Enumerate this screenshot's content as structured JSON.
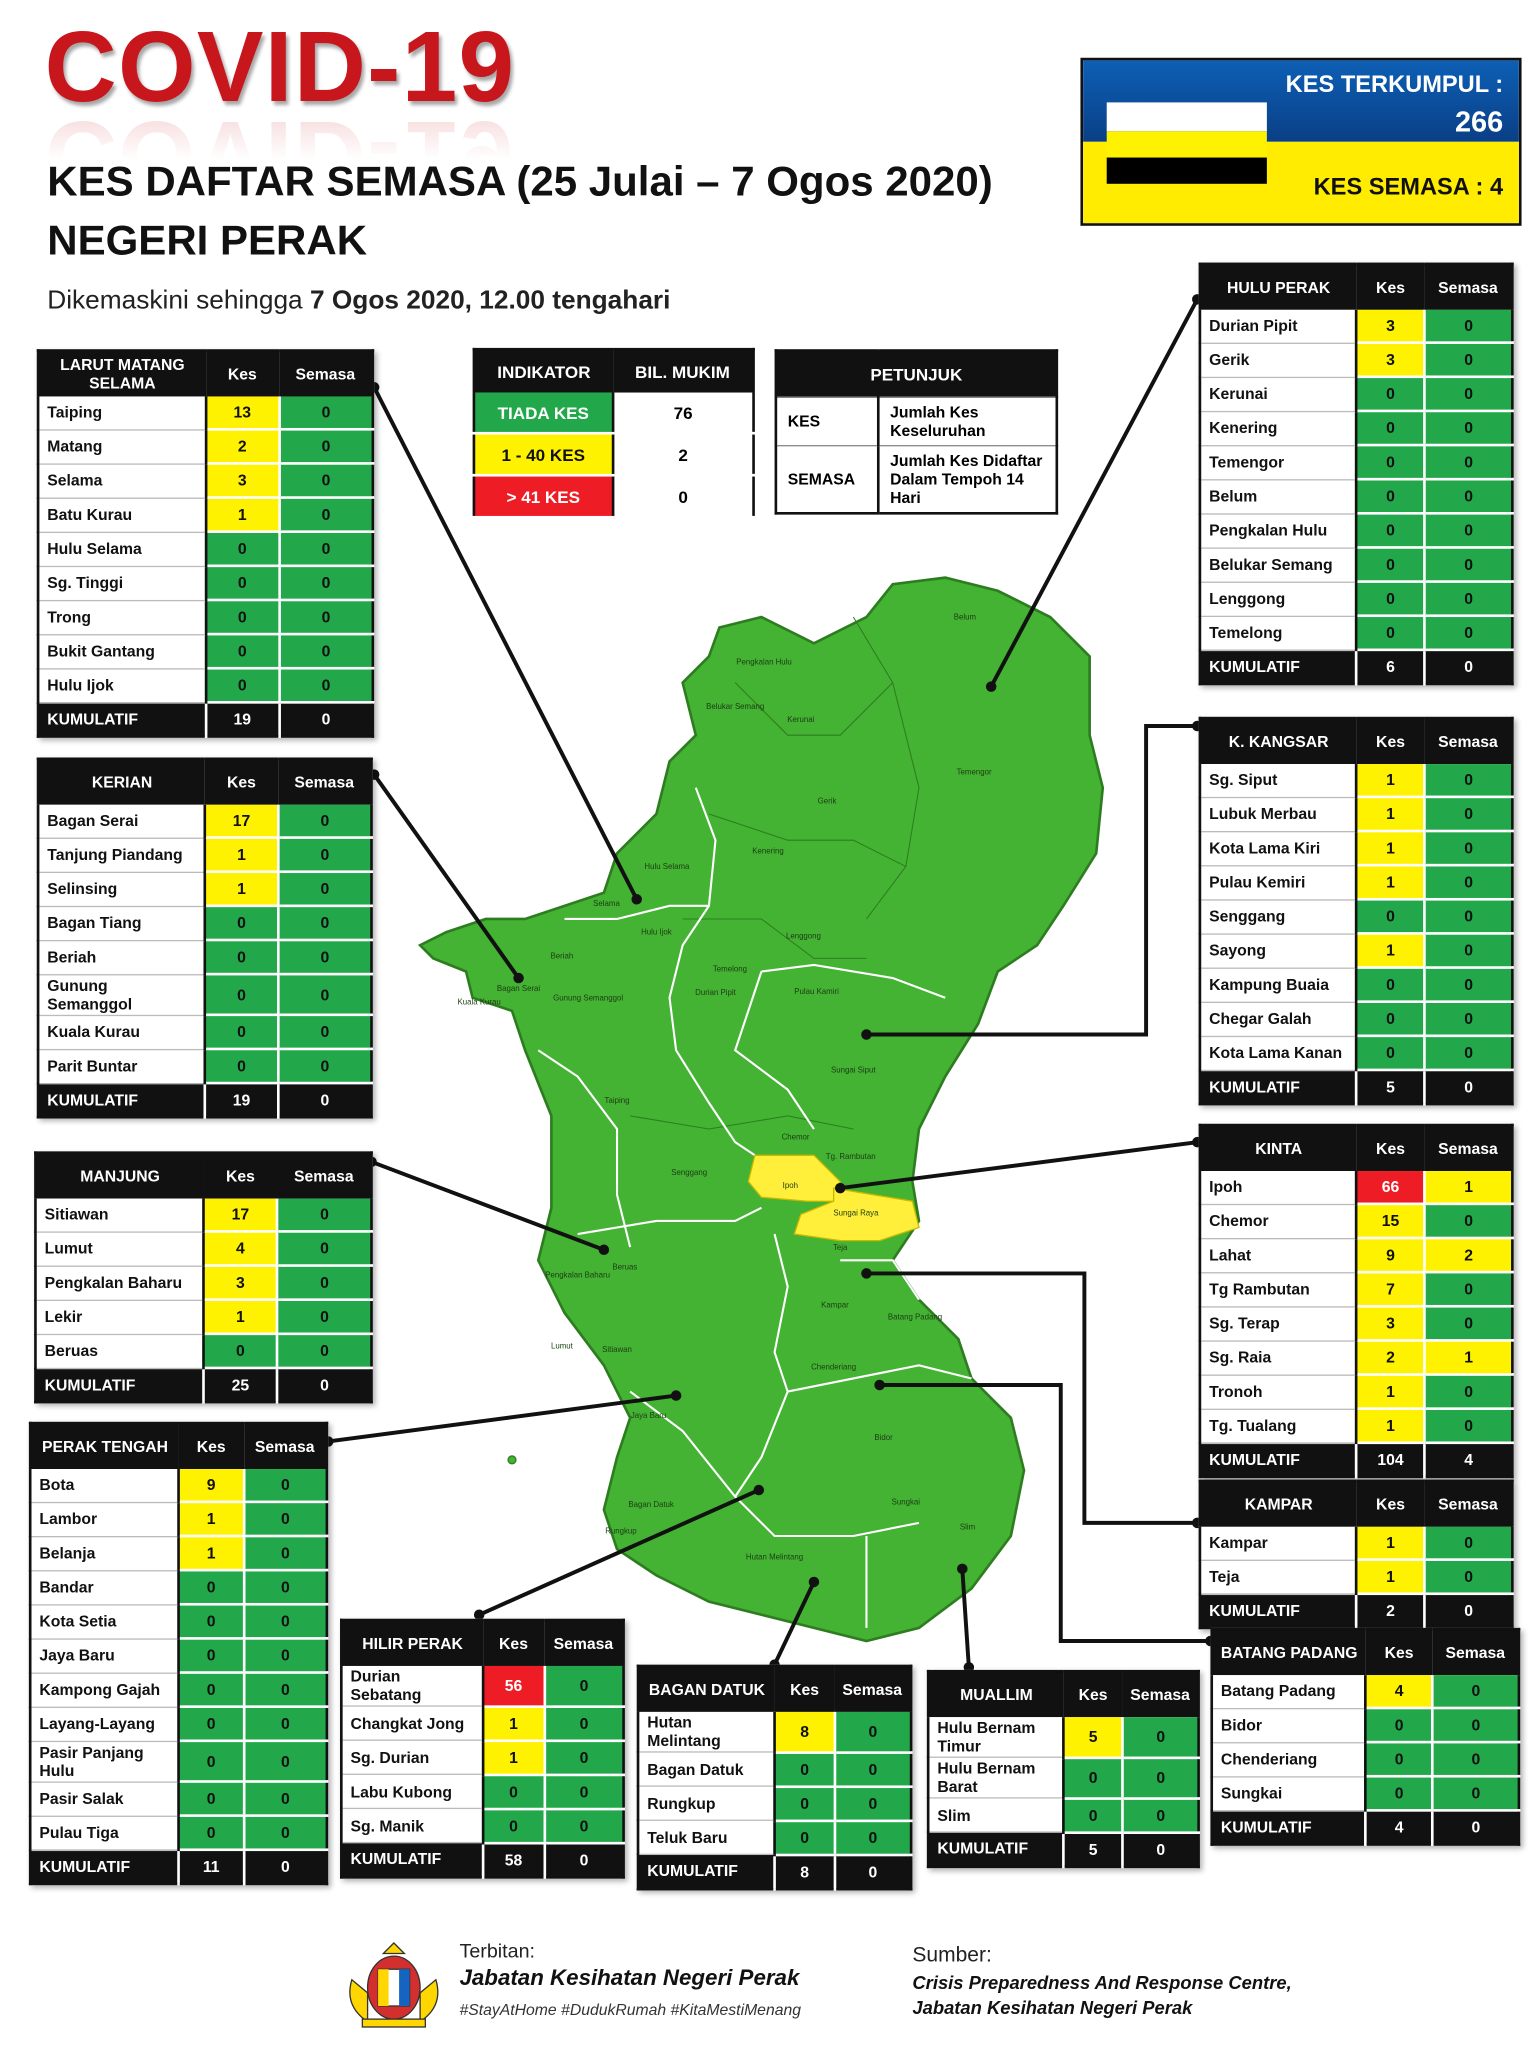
{
  "header": {
    "title": "COVID-19",
    "subtitle": "KES DAFTAR SEMASA (25 Julai – 7 Ogos 2020)",
    "state": "NEGERI PERAK",
    "updated_prefix": "Dikemaskini sehingga",
    "updated_time": "7 Ogos 2020, 12.00 tengahari"
  },
  "summary": {
    "cumulative_label": "KES TERKUMPUL :",
    "cumulative": 266,
    "active_label": "KES SEMASA :",
    "active": 4
  },
  "indicator": {
    "headers": [
      "INDIKATOR",
      "BIL. MUKIM"
    ],
    "rows": [
      [
        "TIADA KES",
        76
      ],
      [
        "1 - 40 KES",
        2
      ],
      [
        "> 41 KES",
        0
      ]
    ]
  },
  "legend": {
    "title": "PETUNJUK",
    "rows": [
      [
        "KES",
        "Jumlah Kes Keseluruhan"
      ],
      [
        "SEMASA",
        "Jumlah Kes Didaftar Dalam Tempoh 14 Hari"
      ]
    ]
  },
  "districts": [
    {
      "name": "LARUT MATANG SELAMA",
      "col_kes": "Kes",
      "col_semasa": "Semasa",
      "rows": [
        [
          "Taiping",
          13,
          0
        ],
        [
          "Matang",
          2,
          0
        ],
        [
          "Selama",
          3,
          0
        ],
        [
          "Batu Kurau",
          1,
          0
        ],
        [
          "Hulu Selama",
          0,
          0
        ],
        [
          "Sg. Tinggi",
          0,
          0
        ],
        [
          "Trong",
          0,
          0
        ],
        [
          "Bukit Gantang",
          0,
          0
        ],
        [
          "Hulu Ijok",
          0,
          0
        ]
      ],
      "total_label": "KUMULATIF",
      "total_kes": 19,
      "total_semasa": 0
    },
    {
      "name": "KERIAN",
      "col_kes": "Kes",
      "col_semasa": "Semasa",
      "rows": [
        [
          "Bagan Serai",
          17,
          0
        ],
        [
          "Tanjung Piandang",
          1,
          0
        ],
        [
          "Selinsing",
          1,
          0
        ],
        [
          "Bagan Tiang",
          0,
          0
        ],
        [
          "Beriah",
          0,
          0
        ],
        [
          "Gunung Semanggol",
          0,
          0
        ],
        [
          "Kuala Kurau",
          0,
          0
        ],
        [
          "Parit Buntar",
          0,
          0
        ]
      ],
      "total_label": "KUMULATIF",
      "total_kes": 19,
      "total_semasa": 0
    },
    {
      "name": "MANJUNG",
      "col_kes": "Kes",
      "col_semasa": "Semasa",
      "rows": [
        [
          "Sitiawan",
          17,
          0
        ],
        [
          "Lumut",
          4,
          0
        ],
        [
          "Pengkalan Baharu",
          3,
          0
        ],
        [
          "Lekir",
          1,
          0
        ],
        [
          "Beruas",
          0,
          0
        ]
      ],
      "total_label": "KUMULATIF",
      "total_kes": 25,
      "total_semasa": 0
    },
    {
      "name": "PERAK TENGAH",
      "col_kes": "Kes",
      "col_semasa": "Semasa",
      "rows": [
        [
          "Bota",
          9,
          0
        ],
        [
          "Lambor",
          1,
          0
        ],
        [
          "Belanja",
          1,
          0
        ],
        [
          "Bandar",
          0,
          0
        ],
        [
          "Kota Setia",
          0,
          0
        ],
        [
          "Jaya Baru",
          0,
          0
        ],
        [
          "Kampong Gajah",
          0,
          0
        ],
        [
          "Layang-Layang",
          0,
          0
        ],
        [
          "Pasir Panjang Hulu",
          0,
          0
        ],
        [
          "Pasir Salak",
          0,
          0
        ],
        [
          "Pulau Tiga",
          0,
          0
        ]
      ],
      "total_label": "KUMULATIF",
      "total_kes": 11,
      "total_semasa": 0
    },
    {
      "name": "HILIR PERAK",
      "col_kes": "Kes",
      "col_semasa": "Semasa",
      "rows": [
        [
          "Durian Sebatang",
          56,
          0
        ],
        [
          "Changkat Jong",
          1,
          0
        ],
        [
          "Sg. Durian",
          1,
          0
        ],
        [
          "Labu Kubong",
          0,
          0
        ],
        [
          "Sg. Manik",
          0,
          0
        ]
      ],
      "total_label": "KUMULATIF",
      "total_kes": 58,
      "total_semasa": 0
    },
    {
      "name": "BAGAN DATUK",
      "col_kes": "Kes",
      "col_semasa": "Semasa",
      "rows": [
        [
          "Hutan Melintang",
          8,
          0
        ],
        [
          "Bagan Datuk",
          0,
          0
        ],
        [
          "Rungkup",
          0,
          0
        ],
        [
          "Teluk Baru",
          0,
          0
        ]
      ],
      "total_label": "KUMULATIF",
      "total_kes": 8,
      "total_semasa": 0
    },
    {
      "name": "MUALLIM",
      "col_kes": "Kes",
      "col_semasa": "Semasa",
      "rows": [
        [
          "Hulu Bernam Timur",
          5,
          0
        ],
        [
          "Hulu Bernam Barat",
          0,
          0
        ],
        [
          "Slim",
          0,
          0
        ]
      ],
      "total_label": "KUMULATIF",
      "total_kes": 5,
      "total_semasa": 0
    },
    {
      "name": "HULU PERAK",
      "col_kes": "Kes",
      "col_semasa": "Semasa",
      "rows": [
        [
          "Durian Pipit",
          3,
          0
        ],
        [
          "Gerik",
          3,
          0
        ],
        [
          "Kerunai",
          0,
          0
        ],
        [
          "Kenering",
          0,
          0
        ],
        [
          "Temengor",
          0,
          0
        ],
        [
          "Belum",
          0,
          0
        ],
        [
          "Pengkalan Hulu",
          0,
          0
        ],
        [
          "Belukar Semang",
          0,
          0
        ],
        [
          "Lenggong",
          0,
          0
        ],
        [
          "Temelong",
          0,
          0
        ]
      ],
      "total_label": "KUMULATIF",
      "total_kes": 6,
      "total_semasa": 0
    },
    {
      "name": "K. KANGSAR",
      "col_kes": "Kes",
      "col_semasa": "Semasa",
      "rows": [
        [
          "Sg. Siput",
          1,
          0
        ],
        [
          "Lubuk Merbau",
          1,
          0
        ],
        [
          "Kota Lama Kiri",
          1,
          0
        ],
        [
          "Pulau Kemiri",
          1,
          0
        ],
        [
          "Senggang",
          0,
          0
        ],
        [
          "Sayong",
          1,
          0
        ],
        [
          "Kampung Buaia",
          0,
          0
        ],
        [
          "Chegar Galah",
          0,
          0
        ],
        [
          "Kota Lama Kanan",
          0,
          0
        ]
      ],
      "total_label": "KUMULATIF",
      "total_kes": 5,
      "total_semasa": 0
    },
    {
      "name": "KINTA",
      "col_kes": "Kes",
      "col_semasa": "Semasa",
      "rows": [
        [
          "Ipoh",
          66,
          1
        ],
        [
          "Chemor",
          15,
          0
        ],
        [
          "Lahat",
          9,
          2
        ],
        [
          "Tg Rambutan",
          7,
          0
        ],
        [
          "Sg. Terap",
          3,
          0
        ],
        [
          "Sg. Raia",
          2,
          1
        ],
        [
          "Tronoh",
          1,
          0
        ],
        [
          "Tg. Tualang",
          1,
          0
        ]
      ],
      "total_label": "KUMULATIF",
      "total_kes": 104,
      "total_semasa": 4
    },
    {
      "name": "KAMPAR",
      "col_kes": "Kes",
      "col_semasa": "Semasa",
      "rows": [
        [
          "Kampar",
          1,
          0
        ],
        [
          "Teja",
          1,
          0
        ]
      ],
      "total_label": "KUMULATIF",
      "total_kes": 2,
      "total_semasa": 0
    },
    {
      "name": "BATANG PADANG",
      "col_kes": "Kes",
      "col_semasa": "Semasa",
      "rows": [
        [
          "Batang Padang",
          4,
          0
        ],
        [
          "Bidor",
          0,
          0
        ],
        [
          "Chenderiang",
          0,
          0
        ],
        [
          "Sungkai",
          0,
          0
        ]
      ],
      "total_label": "KUMULATIF",
      "total_kes": 4,
      "total_semasa": 0
    }
  ],
  "map_labels": [
    "Belum",
    "Temengor",
    "Gerik",
    "Kerunai",
    "Pengkalan Hulu",
    "Belukar Semang",
    "Kenering",
    "Lenggong",
    "Hulu Selama",
    "Selama",
    "Hulu Ijok",
    "Pulau Kamiri",
    "Sungai Siput",
    "Chemor",
    "Tg. Rambutan",
    "Ipoh",
    "Sungai Raya",
    "Kampar",
    "Batang Padang",
    "Chenderiang",
    "Bidor",
    "Sungkai",
    "Slim",
    "Hutan Melintang",
    "Bagan Datuk",
    "Rungkup",
    "Jaya Baru",
    "Lumut",
    "Sitiawan",
    "Beruas",
    "Pengkalan Baharu",
    "Taiping",
    "Beriah",
    "Gunung Semanggol",
    "Kuala Kurau",
    "Bagan Serai",
    "Temelong",
    "Durian Pipit",
    "Senggang",
    "Teja"
  ],
  "footer": {
    "publisher_label": "Terbitan:",
    "publisher": "Jabatan Kesihatan Negeri Perak",
    "hashtags": "#StayAtHome #DudukRumah #KitaMestiMenang",
    "source_label": "Sumber:",
    "source_lines": [
      "Crisis Preparedness And Response Centre,",
      "Jabatan Kesihatan Negeri Perak"
    ]
  }
}
